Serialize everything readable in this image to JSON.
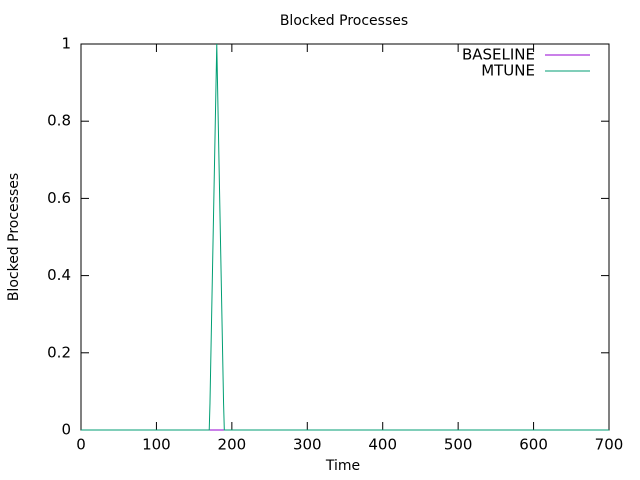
{
  "chart_data": {
    "type": "line",
    "title": "Blocked Processes",
    "x_label": "Time",
    "y_label": "Blocked Processes",
    "series": [
      {
        "name": "BASELINE",
        "color": "#9400d3",
        "x": [
          0,
          700
        ],
        "values": [
          0,
          0
        ]
      },
      {
        "name": "MTUNE",
        "color": "#009e73",
        "x": [
          0,
          170,
          171,
          180,
          189,
          190,
          700
        ],
        "values": [
          0,
          0,
          0.07,
          1,
          0.07,
          0,
          0
        ]
      }
    ],
    "xlim": [
      0,
      700
    ],
    "xticks": [
      0,
      100,
      200,
      300,
      400,
      500,
      600,
      700
    ],
    "ylim": [
      0,
      1
    ],
    "yticks": [
      0,
      0.2,
      0.4,
      0.6,
      0.8,
      1
    ],
    "legend": "top-right",
    "grid": false
  }
}
